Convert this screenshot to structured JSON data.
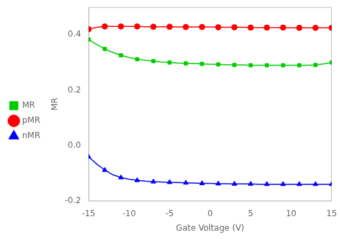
{
  "chart_data": {
    "type": "line",
    "xlabel": "Gate Voltage (V)",
    "ylabel": "MR",
    "xlim": [
      -15,
      15
    ],
    "ylim": [
      -0.2,
      0.5
    ],
    "xticks": [
      -15,
      -10,
      -5,
      0,
      5,
      10,
      15
    ],
    "yticks": [
      -0.2,
      {
        "value": 0.0,
        "label": "0.0"
      },
      0.2,
      0.4
    ],
    "grid": false,
    "legend": "left",
    "series": [
      {
        "color": "#00CC00",
        "marker": "none",
        "line_style": "solid",
        "x": [
          -15,
          -14,
          -13,
          -12,
          -11,
          -10,
          -9,
          -8,
          -7,
          -6,
          -5,
          -4,
          -3,
          -2,
          -1,
          0,
          1,
          2,
          3,
          4,
          5,
          6,
          7,
          8,
          9,
          10,
          11,
          12,
          13,
          14,
          15
        ],
        "values": [
          0.383,
          0.365,
          0.349,
          0.336,
          0.326,
          0.318,
          0.312,
          0.308,
          0.305,
          0.302,
          0.3,
          0.298,
          0.297,
          0.296,
          0.295,
          0.294,
          0.293,
          0.292,
          0.291,
          0.291,
          0.29,
          0.29,
          0.29,
          0.29,
          0.29,
          0.29,
          0.29,
          0.29,
          0.291,
          0.295,
          0.3
        ]
      },
      {
        "name": "MR",
        "color": "#00CC00",
        "marker": "square",
        "line_style": "none",
        "x": [
          -15,
          -13,
          -11,
          -9,
          -7,
          -5,
          -3,
          -1,
          1,
          3,
          5,
          7,
          9,
          11,
          13,
          15
        ],
        "values": [
          0.383,
          0.349,
          0.326,
          0.312,
          0.305,
          0.3,
          0.297,
          0.295,
          0.293,
          0.291,
          0.29,
          0.29,
          0.29,
          0.29,
          0.291,
          0.3
        ]
      },
      {
        "color": "#FF0000",
        "marker": "none",
        "line_style": "solid",
        "x": [
          -15,
          -14,
          -13,
          -12,
          -11,
          -10,
          -9,
          -8,
          -7,
          -6,
          -5,
          -4,
          -3,
          -2,
          -1,
          0,
          1,
          2,
          3,
          4,
          5,
          6,
          7,
          8,
          9,
          10,
          11,
          12,
          13,
          14,
          15
        ],
        "values": [
          0.42,
          0.427,
          0.43,
          0.43,
          0.43,
          0.43,
          0.43,
          0.429,
          0.429,
          0.429,
          0.429,
          0.428,
          0.428,
          0.428,
          0.428,
          0.428,
          0.427,
          0.427,
          0.427,
          0.427,
          0.426,
          0.426,
          0.426,
          0.426,
          0.426,
          0.425,
          0.425,
          0.425,
          0.425,
          0.425,
          0.425
        ]
      },
      {
        "name": "pMR",
        "color": "#FF0000",
        "marker": "circle",
        "line_style": "none",
        "x": [
          -15,
          -13,
          -11,
          -9,
          -7,
          -5,
          -3,
          -1,
          1,
          3,
          5,
          7,
          9,
          11,
          13,
          15
        ],
        "values": [
          0.42,
          0.43,
          0.43,
          0.43,
          0.429,
          0.429,
          0.428,
          0.428,
          0.427,
          0.427,
          0.426,
          0.426,
          0.426,
          0.425,
          0.425,
          0.425
        ]
      },
      {
        "color": "#0000FF",
        "marker": "none",
        "line_style": "solid",
        "x": [
          -15,
          -14,
          -13,
          -12,
          -11,
          -10,
          -9,
          -8,
          -7,
          -6,
          -5,
          -4,
          -3,
          -2,
          -1,
          0,
          1,
          2,
          3,
          4,
          5,
          6,
          7,
          8,
          9,
          10,
          11,
          12,
          13,
          14,
          15
        ],
        "values": [
          -0.04,
          -0.066,
          -0.088,
          -0.105,
          -0.115,
          -0.121,
          -0.125,
          -0.128,
          -0.13,
          -0.131,
          -0.132,
          -0.133,
          -0.134,
          -0.135,
          -0.136,
          -0.136,
          -0.137,
          -0.137,
          -0.138,
          -0.138,
          -0.138,
          -0.139,
          -0.139,
          -0.139,
          -0.139,
          -0.139,
          -0.139,
          -0.139,
          -0.139,
          -0.139,
          -0.139
        ]
      },
      {
        "name": "nMR",
        "color": "#0000FF",
        "marker": "triangle",
        "line_style": "none",
        "x": [
          -15,
          -13,
          -11,
          -9,
          -7,
          -5,
          -3,
          -1,
          1,
          3,
          5,
          7,
          9,
          11,
          13,
          15
        ],
        "values": [
          -0.04,
          -0.088,
          -0.115,
          -0.125,
          -0.13,
          -0.132,
          -0.134,
          -0.136,
          -0.137,
          -0.138,
          -0.138,
          -0.139,
          -0.139,
          -0.139,
          -0.139,
          -0.139
        ]
      }
    ]
  }
}
